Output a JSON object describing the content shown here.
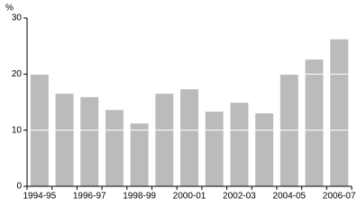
{
  "chart_data": {
    "type": "bar",
    "y_label": "%",
    "categories": [
      "1994-95",
      null,
      "1996-97",
      null,
      "1998-99",
      null,
      "2000-01",
      null,
      "2002-03",
      null,
      "2004-05",
      null,
      "2006-07"
    ],
    "values": [
      19.9,
      16.5,
      15.9,
      13.6,
      11.2,
      16.5,
      17.3,
      13.3,
      14.9,
      13.0,
      19.9,
      22.6,
      26.2
    ],
    "color": "#bbbbbb",
    "ylim": [
      0,
      30
    ],
    "yticks": [
      0,
      10,
      20,
      30
    ],
    "grid": true,
    "grid_color": "#ffffff"
  }
}
